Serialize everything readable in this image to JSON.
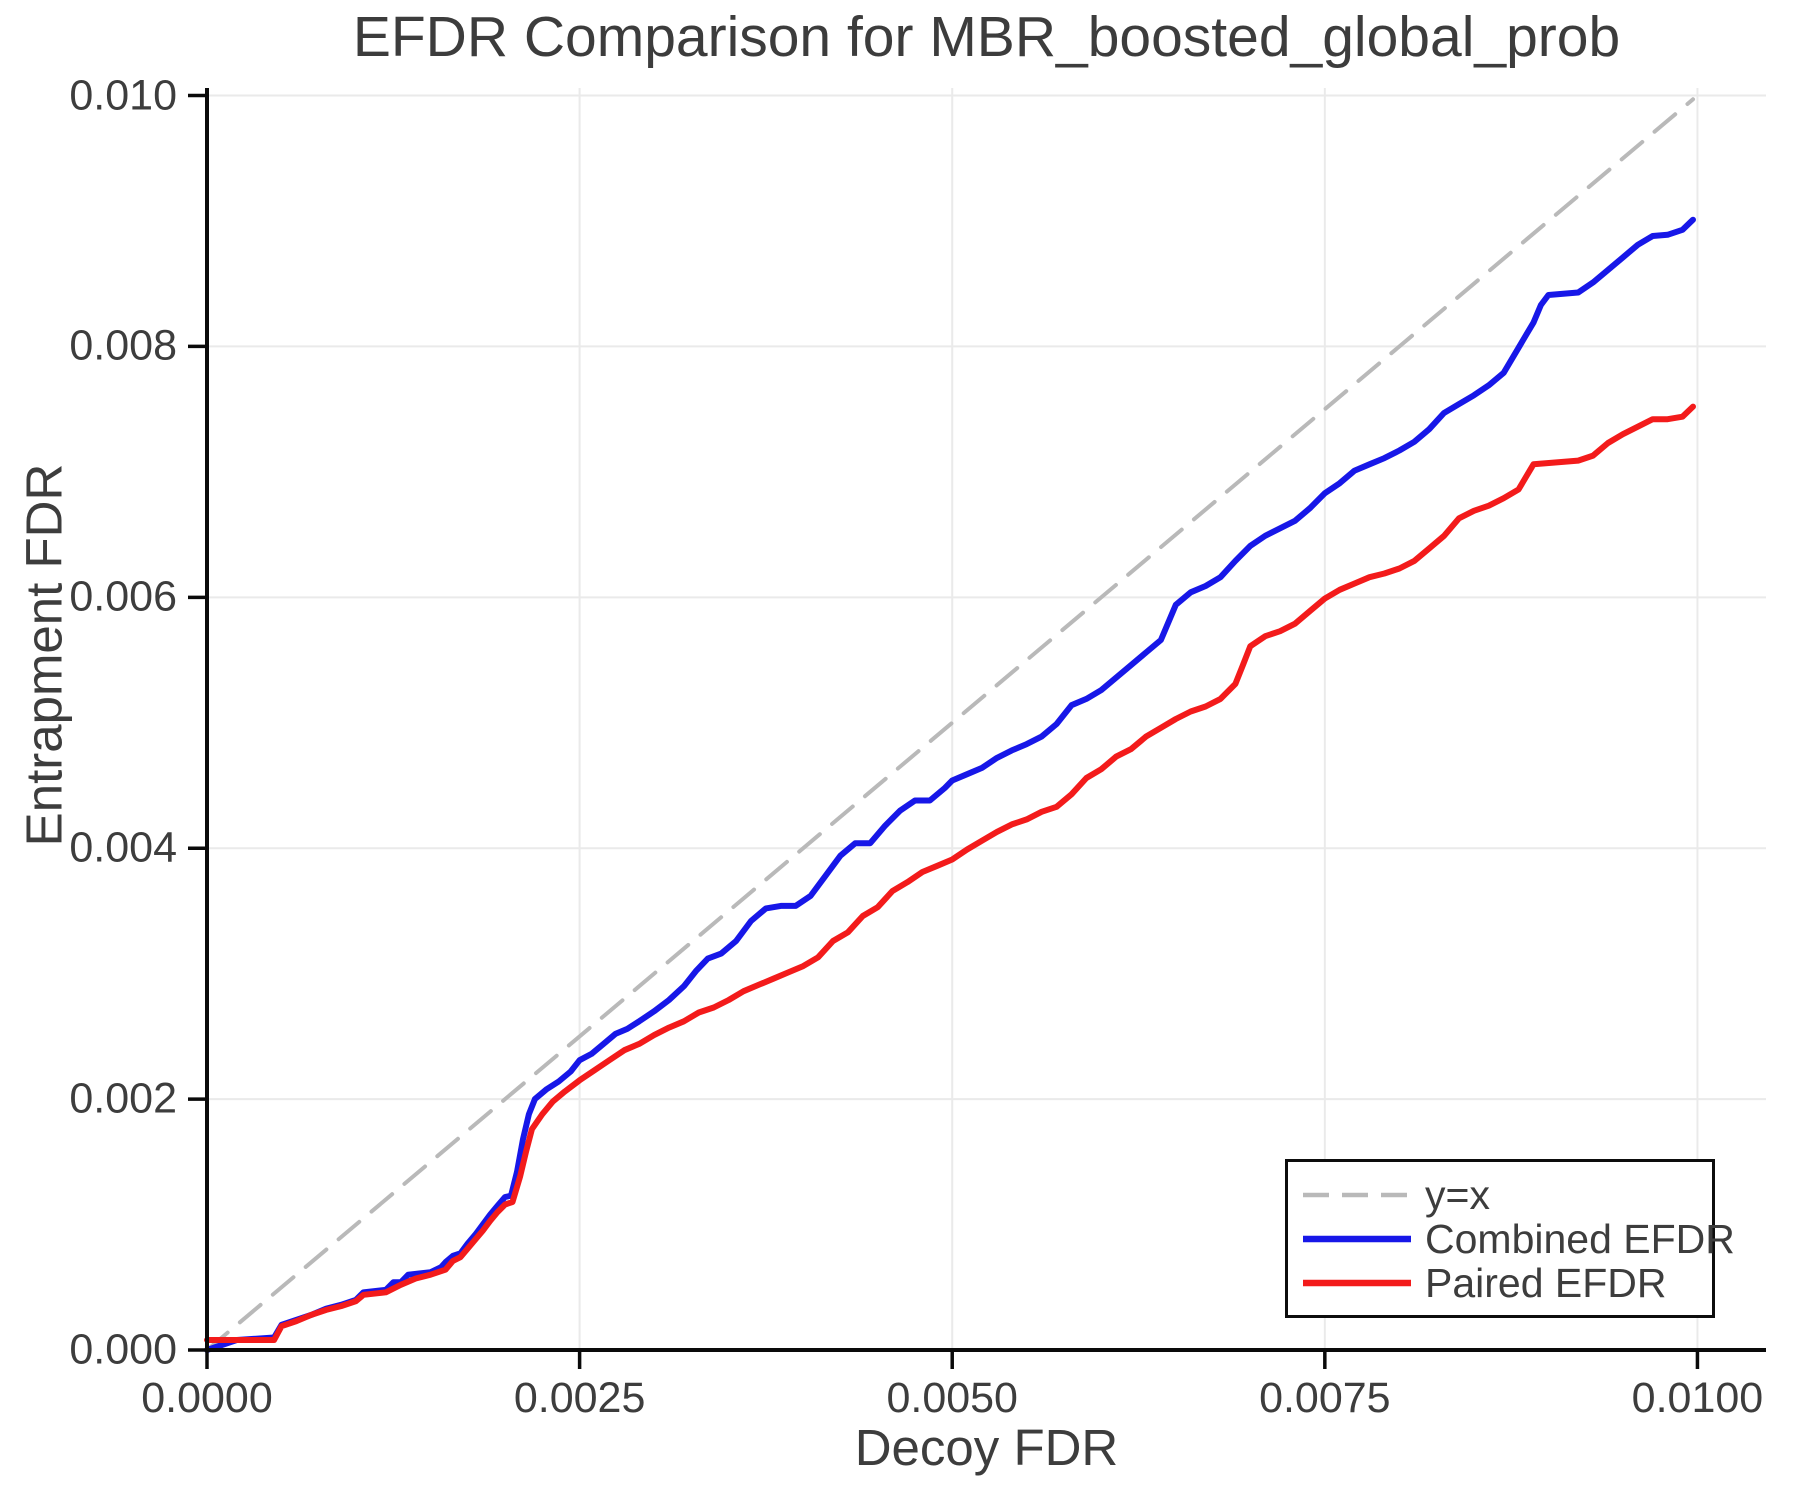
{
  "chart_data": {
    "type": "line",
    "title": "EFDR Comparison for MBR_boosted_global_prob",
    "xlabel": "Decoy FDR",
    "ylabel": "Entrapment FDR",
    "xlim": [
      0,
      0.01046
    ],
    "ylim": [
      0,
      0.01006
    ],
    "grid": true,
    "grid_color": "#eaeaea",
    "axis_color": "#0a0a0a",
    "text_color": "#3d3d3d",
    "legend_position": "lower right",
    "xticks": {
      "values": [
        0,
        0.0025,
        0.005,
        0.0075,
        0.01
      ],
      "labels": [
        "0.0000",
        "0.0025",
        "0.0050",
        "0.0075",
        "0.0100"
      ]
    },
    "yticks": {
      "values": [
        0,
        0.002,
        0.004,
        0.006,
        0.008,
        0.01
      ],
      "labels": [
        "0.000",
        "0.002",
        "0.004",
        "0.006",
        "0.008",
        "0.010"
      ]
    },
    "series": [
      {
        "name": "y=x",
        "style": "dashed",
        "color": "#b9b9b9",
        "width": 4,
        "points": [
          [
            0,
            0
          ],
          [
            0.00997,
            0.00997
          ]
        ]
      },
      {
        "name": "Combined EFDR",
        "style": "solid",
        "color": "#1717e8",
        "width": 6,
        "points": [
          [
            0,
            0
          ],
          [
            0.0002,
            8e-05
          ],
          [
            0.00045,
            0.0001
          ],
          [
            0.0005,
            0.0002
          ],
          [
            0.0006,
            0.00024
          ],
          [
            0.0007,
            0.00028
          ],
          [
            0.0008,
            0.00033
          ],
          [
            0.0009,
            0.00036
          ],
          [
            0.001,
            0.0004
          ],
          [
            0.00105,
            0.00046
          ],
          [
            0.0012,
            0.00048
          ],
          [
            0.00125,
            0.00054
          ],
          [
            0.0013,
            0.00054
          ],
          [
            0.00135,
            0.0006
          ],
          [
            0.0015,
            0.00062
          ],
          [
            0.00157,
            0.00066
          ],
          [
            0.0016,
            0.0007
          ],
          [
            0.00165,
            0.00075
          ],
          [
            0.0017,
            0.00077
          ],
          [
            0.00175,
            0.00085
          ],
          [
            0.0018,
            0.00092
          ],
          [
            0.00185,
            0.001
          ],
          [
            0.0019,
            0.00108
          ],
          [
            0.00195,
            0.00115
          ],
          [
            0.002,
            0.00122
          ],
          [
            0.00204,
            0.00123
          ],
          [
            0.00208,
            0.00142
          ],
          [
            0.00212,
            0.00168
          ],
          [
            0.00216,
            0.00188
          ],
          [
            0.0022,
            0.002
          ],
          [
            0.00228,
            0.00208
          ],
          [
            0.00236,
            0.00214
          ],
          [
            0.00244,
            0.00222
          ],
          [
            0.0025,
            0.00231
          ],
          [
            0.00258,
            0.00236
          ],
          [
            0.00266,
            0.00244
          ],
          [
            0.00274,
            0.00252
          ],
          [
            0.00282,
            0.00256
          ],
          [
            0.0029,
            0.00262
          ],
          [
            0.003,
            0.0027
          ],
          [
            0.0031,
            0.00279
          ],
          [
            0.0032,
            0.0029
          ],
          [
            0.00328,
            0.00302
          ],
          [
            0.00336,
            0.00312
          ],
          [
            0.00345,
            0.00316
          ],
          [
            0.00355,
            0.00326
          ],
          [
            0.00365,
            0.00342
          ],
          [
            0.00375,
            0.00352
          ],
          [
            0.00385,
            0.00354
          ],
          [
            0.00395,
            0.00354
          ],
          [
            0.00405,
            0.00362
          ],
          [
            0.00415,
            0.00378
          ],
          [
            0.00425,
            0.00394
          ],
          [
            0.00435,
            0.00404
          ],
          [
            0.00445,
            0.00404
          ],
          [
            0.00455,
            0.00418
          ],
          [
            0.00465,
            0.0043
          ],
          [
            0.00475,
            0.00438
          ],
          [
            0.00485,
            0.00438
          ],
          [
            0.00495,
            0.00448
          ],
          [
            0.005,
            0.00454
          ],
          [
            0.0051,
            0.00459
          ],
          [
            0.0052,
            0.00464
          ],
          [
            0.0053,
            0.00472
          ],
          [
            0.0054,
            0.00478
          ],
          [
            0.0055,
            0.00483
          ],
          [
            0.0056,
            0.00489
          ],
          [
            0.0057,
            0.00499
          ],
          [
            0.0058,
            0.00514
          ],
          [
            0.0059,
            0.00519
          ],
          [
            0.006,
            0.00526
          ],
          [
            0.0061,
            0.00536
          ],
          [
            0.0062,
            0.00546
          ],
          [
            0.0063,
            0.00556
          ],
          [
            0.0064,
            0.00566
          ],
          [
            0.0065,
            0.00594
          ],
          [
            0.0066,
            0.00604
          ],
          [
            0.0067,
            0.00609
          ],
          [
            0.0068,
            0.00616
          ],
          [
            0.0069,
            0.00629
          ],
          [
            0.007,
            0.00641
          ],
          [
            0.0071,
            0.00649
          ],
          [
            0.0072,
            0.00655
          ],
          [
            0.0073,
            0.00661
          ],
          [
            0.0074,
            0.00671
          ],
          [
            0.0075,
            0.00683
          ],
          [
            0.0076,
            0.00691
          ],
          [
            0.0077,
            0.00701
          ],
          [
            0.0078,
            0.00706
          ],
          [
            0.0079,
            0.00711
          ],
          [
            0.008,
            0.00717
          ],
          [
            0.0081,
            0.00724
          ],
          [
            0.0082,
            0.00734
          ],
          [
            0.0083,
            0.00747
          ],
          [
            0.0084,
            0.00754
          ],
          [
            0.0085,
            0.00761
          ],
          [
            0.0086,
            0.00769
          ],
          [
            0.0087,
            0.00779
          ],
          [
            0.0088,
            0.00799
          ],
          [
            0.00885,
            0.00809
          ],
          [
            0.0089,
            0.00819
          ],
          [
            0.00895,
            0.00833
          ],
          [
            0.009,
            0.00841
          ],
          [
            0.0092,
            0.00843
          ],
          [
            0.0093,
            0.00851
          ],
          [
            0.0094,
            0.00861
          ],
          [
            0.0095,
            0.00871
          ],
          [
            0.0096,
            0.00881
          ],
          [
            0.0097,
            0.00888
          ],
          [
            0.0098,
            0.00889
          ],
          [
            0.0099,
            0.00893
          ],
          [
            0.00997,
            0.00901
          ]
        ]
      },
      {
        "name": "Paired EFDR",
        "style": "solid",
        "color": "#f31b1b",
        "width": 6,
        "points": [
          [
            0,
            8e-05
          ],
          [
            0.00045,
            8e-05
          ],
          [
            0.0005,
            0.00019
          ],
          [
            0.0006,
            0.00023
          ],
          [
            0.0007,
            0.00028
          ],
          [
            0.0008,
            0.00032
          ],
          [
            0.0009,
            0.00035
          ],
          [
            0.001,
            0.00039
          ],
          [
            0.00105,
            0.00044
          ],
          [
            0.0012,
            0.00046
          ],
          [
            0.0013,
            0.00052
          ],
          [
            0.0014,
            0.00057
          ],
          [
            0.0015,
            0.0006
          ],
          [
            0.0016,
            0.00064
          ],
          [
            0.00165,
            0.00071
          ],
          [
            0.0017,
            0.00074
          ],
          [
            0.00175,
            0.00081
          ],
          [
            0.0018,
            0.00088
          ],
          [
            0.00185,
            0.00095
          ],
          [
            0.0019,
            0.00103
          ],
          [
            0.00195,
            0.0011
          ],
          [
            0.002,
            0.00116
          ],
          [
            0.00205,
            0.00118
          ],
          [
            0.0021,
            0.00138
          ],
          [
            0.00214,
            0.00158
          ],
          [
            0.00218,
            0.00176
          ],
          [
            0.00225,
            0.00188
          ],
          [
            0.00232,
            0.00198
          ],
          [
            0.0024,
            0.00206
          ],
          [
            0.0025,
            0.00215
          ],
          [
            0.0026,
            0.00223
          ],
          [
            0.0027,
            0.00231
          ],
          [
            0.0028,
            0.00239
          ],
          [
            0.0029,
            0.00244
          ],
          [
            0.003,
            0.00251
          ],
          [
            0.0031,
            0.00257
          ],
          [
            0.0032,
            0.00262
          ],
          [
            0.0033,
            0.00269
          ],
          [
            0.0034,
            0.00273
          ],
          [
            0.0035,
            0.00279
          ],
          [
            0.0036,
            0.00286
          ],
          [
            0.0037,
            0.00291
          ],
          [
            0.0038,
            0.00296
          ],
          [
            0.0039,
            0.00301
          ],
          [
            0.004,
            0.00306
          ],
          [
            0.0041,
            0.00313
          ],
          [
            0.0042,
            0.00326
          ],
          [
            0.0043,
            0.00333
          ],
          [
            0.0044,
            0.00346
          ],
          [
            0.0045,
            0.00353
          ],
          [
            0.0046,
            0.00366
          ],
          [
            0.0047,
            0.00373
          ],
          [
            0.0048,
            0.00381
          ],
          [
            0.0049,
            0.00386
          ],
          [
            0.005,
            0.00391
          ],
          [
            0.0051,
            0.00399
          ],
          [
            0.0052,
            0.00406
          ],
          [
            0.0053,
            0.00413
          ],
          [
            0.0054,
            0.00419
          ],
          [
            0.0055,
            0.00423
          ],
          [
            0.0056,
            0.00429
          ],
          [
            0.0057,
            0.00433
          ],
          [
            0.0058,
            0.00443
          ],
          [
            0.0059,
            0.00456
          ],
          [
            0.006,
            0.00463
          ],
          [
            0.0061,
            0.00473
          ],
          [
            0.0062,
            0.00479
          ],
          [
            0.0063,
            0.00489
          ],
          [
            0.0064,
            0.00496
          ],
          [
            0.0065,
            0.00503
          ],
          [
            0.0066,
            0.00509
          ],
          [
            0.0067,
            0.00513
          ],
          [
            0.0068,
            0.00519
          ],
          [
            0.0069,
            0.00531
          ],
          [
            0.00695,
            0.00546
          ],
          [
            0.007,
            0.00561
          ],
          [
            0.0071,
            0.00569
          ],
          [
            0.0072,
            0.00573
          ],
          [
            0.0073,
            0.00579
          ],
          [
            0.0074,
            0.00589
          ],
          [
            0.0075,
            0.00599
          ],
          [
            0.0076,
            0.00606
          ],
          [
            0.0077,
            0.00611
          ],
          [
            0.0078,
            0.00616
          ],
          [
            0.0079,
            0.00619
          ],
          [
            0.008,
            0.00623
          ],
          [
            0.0081,
            0.00629
          ],
          [
            0.0082,
            0.00639
          ],
          [
            0.0083,
            0.00649
          ],
          [
            0.0084,
            0.00663
          ],
          [
            0.0085,
            0.00669
          ],
          [
            0.0086,
            0.00673
          ],
          [
            0.0087,
            0.00679
          ],
          [
            0.0088,
            0.00686
          ],
          [
            0.00885,
            0.00696
          ],
          [
            0.0089,
            0.00706
          ],
          [
            0.0092,
            0.00709
          ],
          [
            0.0093,
            0.00713
          ],
          [
            0.0094,
            0.00723
          ],
          [
            0.0095,
            0.0073
          ],
          [
            0.0096,
            0.00736
          ],
          [
            0.0097,
            0.00742
          ],
          [
            0.0098,
            0.00742
          ],
          [
            0.0099,
            0.00744
          ],
          [
            0.00997,
            0.00752
          ]
        ]
      }
    ]
  }
}
